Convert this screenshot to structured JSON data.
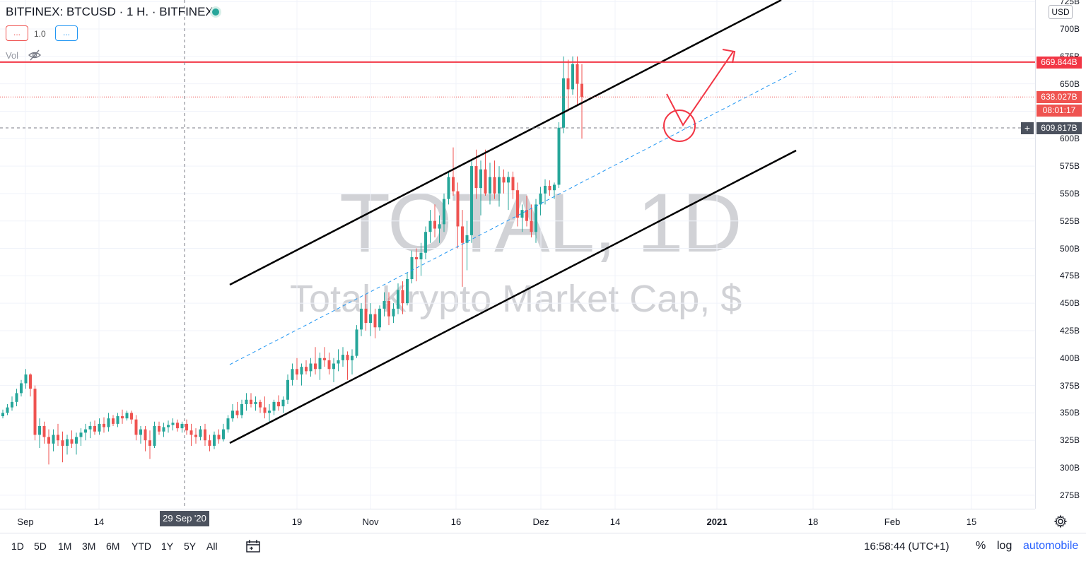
{
  "header": {
    "title": "BITFINEX: BTCUSD · 1 H. · BITFINEX",
    "indicator_red": "...",
    "indicator_num": "1.0",
    "indicator_blue": "...",
    "vol_label": "Vol"
  },
  "watermark": {
    "symbol": "TOTAL, 1D",
    "subtitle": "Total Krypto Market Cap, $"
  },
  "price_axis": {
    "currency": "USD",
    "ticks": [
      "725B",
      "700B",
      "675B",
      "650B",
      "625B",
      "600B",
      "575B",
      "550B",
      "525B",
      "500B",
      "475B",
      "450B",
      "425B",
      "400B",
      "375B",
      "350B",
      "325B",
      "300B",
      "275B"
    ],
    "tags": {
      "resistance": "669.844B",
      "last": "638.027B",
      "countdown": "08:01:17",
      "crosshair": "609.817B"
    }
  },
  "time_axis": {
    "ticks": [
      "Sep",
      "14",
      "19",
      "Nov",
      "16",
      "Dez",
      "14",
      "2021",
      "18",
      "Feb",
      "15"
    ],
    "crosshair_label": "29 Sep '20"
  },
  "bottom_bar": {
    "ranges": [
      "1D",
      "5D",
      "1M",
      "3M",
      "6M",
      "YTD",
      "1Y",
      "5Y",
      "All"
    ],
    "clock": "16:58:44 (UTC+1)",
    "percent": "%",
    "log": "log",
    "auto": "automobile"
  },
  "colors": {
    "up": "#26a69a",
    "down": "#ef5350",
    "resistance": "#f23645",
    "channel": "#000000",
    "midline": "#2196f3",
    "annotation": "#f23645"
  },
  "chart_data": {
    "type": "candlestick",
    "title": "TOTAL, 1D",
    "subtitle": "Total Krypto Market Cap, $",
    "ylabel": "USD",
    "ylim": [
      262,
      726
    ],
    "x_ticks": [
      "Sep",
      "14",
      "19",
      "Nov",
      "16",
      "Dez",
      "14",
      "2021",
      "18",
      "Feb",
      "15"
    ],
    "y_unit": "B",
    "resistance_level": 669.844,
    "last_price": 638.027,
    "crosshair_price": 609.817,
    "candles_ohlc": [
      [
        347,
        353,
        345,
        350
      ],
      [
        350,
        358,
        348,
        355
      ],
      [
        355,
        365,
        352,
        360
      ],
      [
        360,
        372,
        356,
        368
      ],
      [
        368,
        380,
        365,
        377
      ],
      [
        377,
        390,
        372,
        385
      ],
      [
        385,
        386,
        365,
        372
      ],
      [
        372,
        375,
        325,
        330
      ],
      [
        330,
        345,
        318,
        338
      ],
      [
        338,
        342,
        322,
        328
      ],
      [
        328,
        335,
        303,
        322
      ],
      [
        322,
        335,
        315,
        330
      ],
      [
        330,
        340,
        320,
        325
      ],
      [
        325,
        333,
        305,
        320
      ],
      [
        320,
        330,
        312,
        326
      ],
      [
        326,
        334,
        318,
        322
      ],
      [
        322,
        332,
        312,
        328
      ],
      [
        328,
        336,
        320,
        332
      ],
      [
        332,
        340,
        325,
        335
      ],
      [
        335,
        342,
        327,
        338
      ],
      [
        338,
        343,
        330,
        333
      ],
      [
        333,
        345,
        330,
        340
      ],
      [
        340,
        346,
        332,
        337
      ],
      [
        337,
        350,
        333,
        345
      ],
      [
        345,
        348,
        338,
        340
      ],
      [
        340,
        350,
        337,
        347
      ],
      [
        347,
        353,
        340,
        345
      ],
      [
        345,
        352,
        343,
        350
      ],
      [
        350,
        352,
        340,
        344
      ],
      [
        344,
        348,
        325,
        330
      ],
      [
        330,
        338,
        322,
        335
      ],
      [
        335,
        338,
        315,
        325
      ],
      [
        325,
        334,
        308,
        320
      ],
      [
        320,
        342,
        318,
        338
      ],
      [
        338,
        342,
        330,
        333
      ],
      [
        333,
        341,
        328,
        337
      ],
      [
        337,
        343,
        332,
        339
      ],
      [
        339,
        345,
        334,
        341
      ],
      [
        341,
        344,
        333,
        336
      ],
      [
        336,
        342,
        332,
        340
      ],
      [
        340,
        344,
        330,
        334
      ],
      [
        334,
        340,
        320,
        330
      ],
      [
        330,
        336,
        322,
        328
      ],
      [
        328,
        338,
        325,
        335
      ],
      [
        335,
        340,
        320,
        325
      ],
      [
        325,
        330,
        315,
        320
      ],
      [
        320,
        333,
        317,
        330
      ],
      [
        330,
        335,
        322,
        326
      ],
      [
        326,
        340,
        324,
        335
      ],
      [
        335,
        348,
        332,
        345
      ],
      [
        345,
        358,
        342,
        352
      ],
      [
        352,
        360,
        345,
        348
      ],
      [
        348,
        362,
        345,
        358
      ],
      [
        358,
        368,
        352,
        362
      ],
      [
        362,
        368,
        355,
        358
      ],
      [
        358,
        365,
        352,
        360
      ],
      [
        360,
        362,
        350,
        355
      ],
      [
        355,
        365,
        345,
        350
      ],
      [
        350,
        358,
        342,
        352
      ],
      [
        352,
        362,
        348,
        360
      ],
      [
        360,
        366,
        352,
        356
      ],
      [
        356,
        365,
        350,
        362
      ],
      [
        362,
        385,
        358,
        380
      ],
      [
        380,
        395,
        375,
        390
      ],
      [
        390,
        400,
        380,
        385
      ],
      [
        385,
        395,
        375,
        392
      ],
      [
        392,
        398,
        385,
        388
      ],
      [
        388,
        400,
        383,
        395
      ],
      [
        395,
        410,
        385,
        390
      ],
      [
        390,
        405,
        380,
        400
      ],
      [
        400,
        410,
        392,
        398
      ],
      [
        398,
        405,
        385,
        390
      ],
      [
        390,
        400,
        378,
        395
      ],
      [
        395,
        408,
        388,
        398
      ],
      [
        398,
        410,
        392,
        403
      ],
      [
        403,
        406,
        380,
        398
      ],
      [
        398,
        408,
        385,
        402
      ],
      [
        402,
        430,
        400,
        426
      ],
      [
        426,
        450,
        420,
        445
      ],
      [
        445,
        458,
        425,
        432
      ],
      [
        432,
        450,
        420,
        440
      ],
      [
        440,
        445,
        418,
        428
      ],
      [
        428,
        448,
        425,
        445
      ],
      [
        445,
        460,
        438,
        452
      ],
      [
        452,
        460,
        430,
        438
      ],
      [
        438,
        450,
        432,
        445
      ],
      [
        445,
        468,
        440,
        462
      ],
      [
        462,
        470,
        440,
        450
      ],
      [
        450,
        478,
        448,
        472
      ],
      [
        472,
        498,
        468,
        492
      ],
      [
        492,
        500,
        470,
        490
      ],
      [
        490,
        505,
        475,
        496
      ],
      [
        496,
        520,
        490,
        515
      ],
      [
        515,
        535,
        505,
        525
      ],
      [
        525,
        540,
        510,
        518
      ],
      [
        518,
        530,
        505,
        522
      ],
      [
        522,
        550,
        515,
        545
      ],
      [
        545,
        570,
        540,
        565
      ],
      [
        565,
        592,
        548,
        552
      ],
      [
        552,
        560,
        500,
        520
      ],
      [
        520,
        535,
        465,
        505
      ],
      [
        505,
        525,
        480,
        512
      ],
      [
        512,
        580,
        505,
        575
      ],
      [
        575,
        590,
        545,
        555
      ],
      [
        555,
        580,
        530,
        572
      ],
      [
        572,
        590,
        548,
        550
      ],
      [
        550,
        578,
        540,
        565
      ],
      [
        565,
        580,
        545,
        550
      ],
      [
        550,
        575,
        538,
        565
      ],
      [
        565,
        572,
        550,
        560
      ],
      [
        560,
        570,
        535,
        565
      ],
      [
        565,
        570,
        545,
        553
      ],
      [
        553,
        560,
        520,
        528
      ],
      [
        528,
        540,
        515,
        535
      ],
      [
        535,
        548,
        520,
        525
      ],
      [
        525,
        540,
        510,
        515
      ],
      [
        515,
        545,
        505,
        540
      ],
      [
        540,
        556,
        530,
        550
      ],
      [
        550,
        563,
        540,
        557
      ],
      [
        557,
        562,
        548,
        553
      ],
      [
        553,
        560,
        545,
        558
      ],
      [
        558,
        615,
        555,
        610
      ],
      [
        610,
        675,
        605,
        655
      ],
      [
        655,
        672,
        625,
        645
      ],
      [
        645,
        675,
        640,
        668
      ],
      [
        668,
        675,
        630,
        650
      ],
      [
        650,
        668,
        600,
        638
      ]
    ]
  }
}
